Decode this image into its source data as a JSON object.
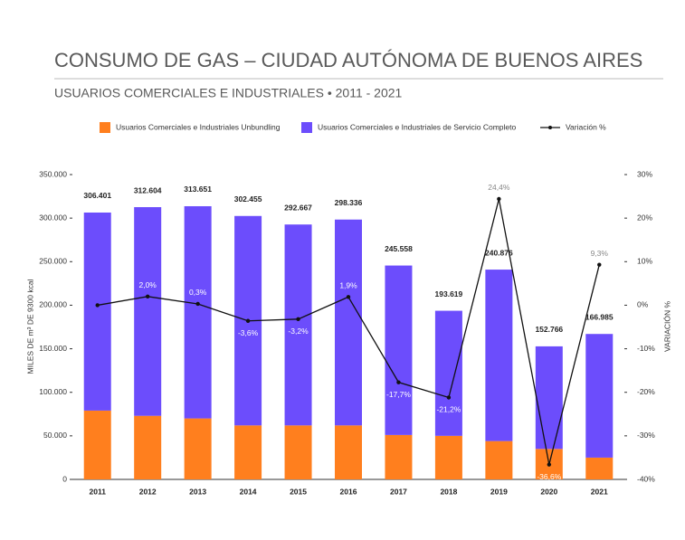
{
  "chart_data": {
    "type": "bar-line",
    "title": "CONSUMO DE GAS – CIUDAD AUTÓNOMA DE BUENOS AIRES",
    "subtitle": "USUARIOS COMERCIALES E INDUSTRIALES • 2011 - 2021",
    "ylabel": "MILES DE m³ DE 9300 kcal",
    "y2label": "VARIACIÓN %",
    "categories": [
      "2011",
      "2012",
      "2013",
      "2014",
      "2015",
      "2016",
      "2017",
      "2018",
      "2019",
      "2020",
      "2021"
    ],
    "series": [
      {
        "name": "Usuarios Comerciales e Industriales Unbundling",
        "type": "bar",
        "color": "#ff7f1e",
        "values": [
          79000,
          73000,
          70000,
          62000,
          62000,
          62000,
          51000,
          50000,
          44000,
          35000,
          25000
        ]
      },
      {
        "name": "Usuarios Comerciales e Industriales de Servicio Completo",
        "type": "bar",
        "color": "#6c4dfc",
        "values": [
          227401,
          239604,
          243651,
          240455,
          230667,
          236336,
          194558,
          143619,
          196876,
          117766,
          141985
        ]
      },
      {
        "name": "Variación %",
        "type": "line",
        "axis": "y2",
        "color": "#111111",
        "values": [
          0,
          2.0,
          0.3,
          -3.6,
          -3.2,
          1.9,
          -17.7,
          -21.2,
          24.4,
          -36.6,
          9.3
        ],
        "value_labels": [
          null,
          "2,0%",
          "0,3%",
          "-3,6%",
          "-3,2%",
          "1,9%",
          "-17,7%",
          "-21,2%",
          "24,4%",
          "-36,6%",
          "9,3%"
        ]
      }
    ],
    "totals": {
      "values": [
        306401,
        312604,
        313651,
        302455,
        292667,
        298336,
        245558,
        193619,
        240876,
        152766,
        166985
      ],
      "value_labels": [
        "306.401",
        "312.604",
        "313.651",
        "302.455",
        "292.667",
        "298.336",
        "245.558",
        "193.619",
        "240.876",
        "152.766",
        "166.985"
      ]
    },
    "ylim": [
      0,
      350000
    ],
    "yticks": [
      {
        "value": 0,
        "label": "0"
      },
      {
        "value": 50000,
        "label": "50.000"
      },
      {
        "value": 100000,
        "label": "100.000"
      },
      {
        "value": 150000,
        "label": "150.000"
      },
      {
        "value": 200000,
        "label": "200.000"
      },
      {
        "value": 250000,
        "label": "250.000"
      },
      {
        "value": 300000,
        "label": "300.000"
      },
      {
        "value": 350000,
        "label": "350.000"
      }
    ],
    "y2lim": [
      -40,
      30
    ],
    "y2ticks": [
      {
        "value": -40,
        "label": "-40%"
      },
      {
        "value": -30,
        "label": "-30%"
      },
      {
        "value": -20,
        "label": "-20%"
      },
      {
        "value": -10,
        "label": "-10%"
      },
      {
        "value": 0,
        "label": "0%"
      },
      {
        "value": 10,
        "label": "10%"
      },
      {
        "value": 20,
        "label": "20%"
      },
      {
        "value": 30,
        "label": "30%"
      }
    ],
    "legend": "top"
  }
}
